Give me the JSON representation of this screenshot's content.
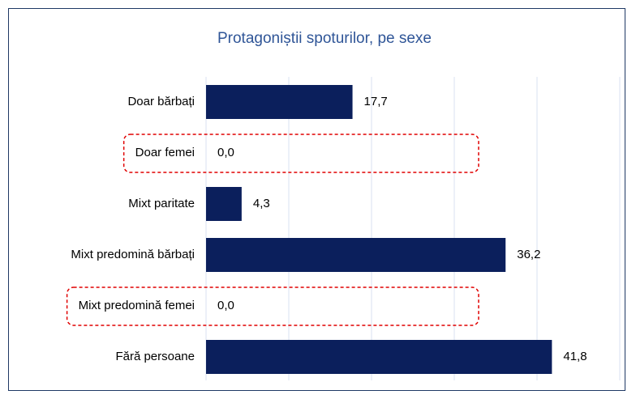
{
  "chart_data": {
    "type": "bar",
    "orientation": "horizontal",
    "title": "Protagoniștii spoturilor, pe sexe",
    "categories": [
      "Doar bărbați",
      "Doar femei",
      "Mixt paritate",
      "Mixt predomină bărbați",
      "Mixt predomină femei",
      "Fără persoane"
    ],
    "values": [
      17.7,
      0.0,
      4.3,
      36.2,
      0.0,
      41.8
    ],
    "value_labels": [
      "17,7",
      "0,0",
      "4,3",
      "36,2",
      "0,0",
      "41,8"
    ],
    "color": "#0b1f5c",
    "xlim": [
      0,
      50
    ],
    "xticks": [
      0,
      10,
      20,
      30,
      40,
      50
    ],
    "grid": true,
    "highlight": [
      1,
      4
    ],
    "highlight_color": "#e00000"
  }
}
